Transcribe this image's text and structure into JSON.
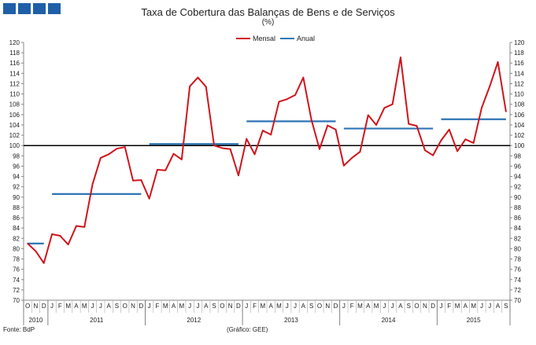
{
  "title": "Taxa de Cobertura das Balanças de Bens e de Serviços",
  "subtitle": "(%)",
  "source": "Fonte: BdP",
  "credit": "(Gráfico: GEE)",
  "colors": {
    "mensal": "#d0141c",
    "anual": "#2e75b6",
    "reference": "#000000",
    "logo": "#1f5fa8"
  },
  "chart_data": {
    "type": "line",
    "ylim": [
      70,
      120
    ],
    "ytick_step": 2,
    "reference_line": 100,
    "month_labels": [
      "O",
      "N",
      "D",
      "J",
      "F",
      "M",
      "A",
      "M",
      "J",
      "J",
      "A",
      "S",
      "O",
      "N",
      "D",
      "J",
      "F",
      "M",
      "A",
      "M",
      "J",
      "J",
      "A",
      "S",
      "O",
      "N",
      "D",
      "J",
      "F",
      "M",
      "A",
      "M",
      "J",
      "J",
      "A",
      "S",
      "O",
      "N",
      "D",
      "J",
      "F",
      "M",
      "A",
      "M",
      "J",
      "J",
      "A",
      "S",
      "O",
      "N",
      "D",
      "J",
      "F",
      "M",
      "A",
      "M",
      "J",
      "J",
      "A",
      "S"
    ],
    "year_groups": [
      {
        "label": "2010",
        "start": 0,
        "count": 3
      },
      {
        "label": "2011",
        "start": 3,
        "count": 12
      },
      {
        "label": "2012",
        "start": 15,
        "count": 12
      },
      {
        "label": "2013",
        "start": 27,
        "count": 12
      },
      {
        "label": "2014",
        "start": 39,
        "count": 12
      },
      {
        "label": "2015",
        "start": 51,
        "count": 9
      }
    ],
    "series": [
      {
        "name": "Mensal",
        "values": [
          81.0,
          79.5,
          77.2,
          82.8,
          82.5,
          80.8,
          84.4,
          84.2,
          92.5,
          97.6,
          98.3,
          99.4,
          99.7,
          93.2,
          93.3,
          89.7,
          95.3,
          95.2,
          98.4,
          97.3,
          111.5,
          113.2,
          111.4,
          100.0,
          99.5,
          99.3,
          94.2,
          101.3,
          98.3,
          102.9,
          102.1,
          108.5,
          109.0,
          109.8,
          113.2,
          105.0,
          99.3,
          103.9,
          103.1,
          96.1,
          97.6,
          98.8,
          105.9,
          104.0,
          107.3,
          108.0,
          117.1,
          104.2,
          103.8,
          99.1,
          98.1,
          101.0,
          103.1,
          98.9,
          101.2,
          100.5,
          107.3,
          111.5,
          116.2,
          106.6
        ]
      },
      {
        "name": "Anual",
        "segments": [
          {
            "from": 0,
            "to": 2,
            "value": 81.0
          },
          {
            "from": 3,
            "to": 14,
            "value": 90.6
          },
          {
            "from": 15,
            "to": 26,
            "value": 100.3
          },
          {
            "from": 27,
            "to": 38,
            "value": 104.7
          },
          {
            "from": 39,
            "to": 50,
            "value": 103.3
          },
          {
            "from": 51,
            "to": 59,
            "value": 105.1
          }
        ]
      }
    ]
  }
}
